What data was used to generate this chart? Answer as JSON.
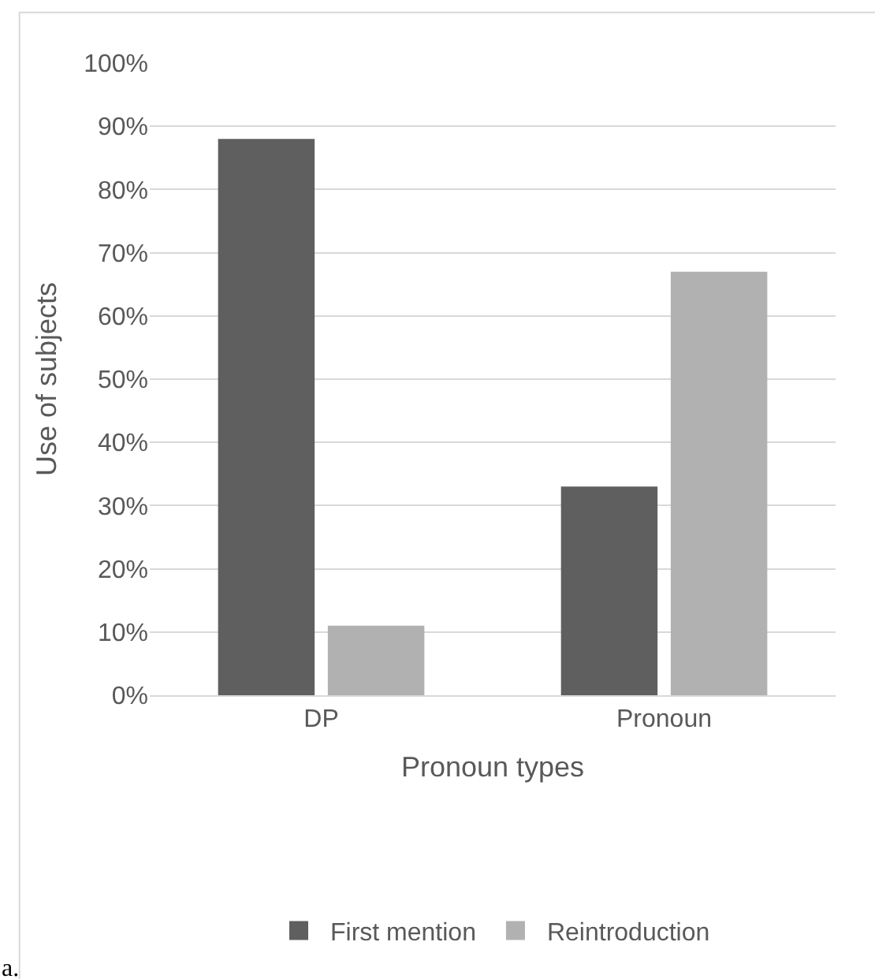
{
  "chart_data": {
    "type": "bar",
    "xlabel": "Pronoun types",
    "ylabel": "Use of subjects",
    "categories": [
      "DP",
      "Pronoun"
    ],
    "series": [
      {
        "name": "First mention",
        "color": "#5f5f5f",
        "values": [
          88,
          33
        ]
      },
      {
        "name": "Reintroduction",
        "color": "#b1b1b1",
        "values": [
          11,
          67
        ]
      }
    ],
    "ylim": [
      0,
      100
    ],
    "yticks": [
      {
        "value": 0,
        "label": "0%"
      },
      {
        "value": 10,
        "label": "10%"
      },
      {
        "value": 20,
        "label": "20%"
      },
      {
        "value": 30,
        "label": "30%"
      },
      {
        "value": 40,
        "label": "40%"
      },
      {
        "value": 50,
        "label": "50%"
      },
      {
        "value": 60,
        "label": "60%"
      },
      {
        "value": 70,
        "label": "70%"
      },
      {
        "value": 80,
        "label": "80%"
      },
      {
        "value": 90,
        "label": "90%"
      },
      {
        "value": 100,
        "label": "100%"
      }
    ],
    "grid": "y",
    "legend": "bottom",
    "annotations": [
      "a."
    ]
  }
}
